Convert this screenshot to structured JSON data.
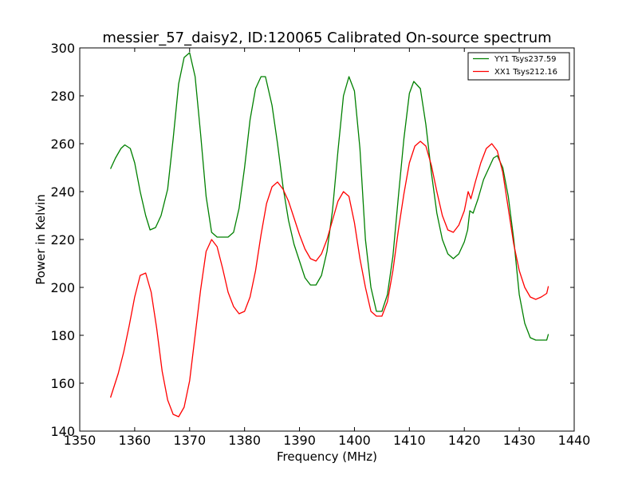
{
  "chart_data": {
    "type": "line",
    "title": "messier_57_daisy2, ID:120065 Calibrated On-source spectrum",
    "xlabel": "Frequency (MHz)",
    "ylabel": "Power in Kelvin",
    "xlim": [
      1350,
      1440
    ],
    "ylim": [
      140,
      300
    ],
    "xticks": [
      1350,
      1360,
      1370,
      1380,
      1390,
      1400,
      1410,
      1420,
      1430,
      1440
    ],
    "yticks": [
      140,
      160,
      180,
      200,
      220,
      240,
      260,
      280,
      300
    ],
    "grid": false,
    "legend_position": "top-right",
    "series": [
      {
        "name": "YY1 Tsys237.59",
        "color": "#008000",
        "x": [
          1355.6,
          1356.5,
          1357.5,
          1358.2,
          1359.2,
          1360.0,
          1361.0,
          1362.0,
          1362.8,
          1363.8,
          1364.8,
          1366.0,
          1367.0,
          1368.0,
          1369.0,
          1370.0,
          1371.0,
          1372.0,
          1373.0,
          1374.0,
          1375.0,
          1376.0,
          1377.0,
          1378.0,
          1379.0,
          1380.0,
          1381.0,
          1382.0,
          1383.0,
          1383.8,
          1385.0,
          1386.0,
          1387.0,
          1388.0,
          1389.0,
          1390.0,
          1391.0,
          1392.0,
          1393.0,
          1394.0,
          1395.0,
          1396.0,
          1397.0,
          1398.0,
          1399.0,
          1400.0,
          1401.0,
          1402.0,
          1403.0,
          1404.0,
          1405.0,
          1406.0,
          1407.0,
          1408.0,
          1409.0,
          1410.0,
          1410.8,
          1412.0,
          1413.0,
          1414.0,
          1415.0,
          1416.0,
          1417.0,
          1418.0,
          1419.0,
          1420.0,
          1420.6,
          1421.0,
          1421.6,
          1422.5,
          1423.5,
          1424.5,
          1425.3,
          1426.0,
          1427.0,
          1428.0,
          1429.0,
          1430.0,
          1431.0,
          1432.0,
          1433.0,
          1434.0,
          1435.0,
          1435.3
        ],
        "values": [
          249.5,
          254,
          258,
          259.5,
          258,
          252,
          240,
          230,
          224,
          225,
          230,
          241,
          262,
          285,
          296,
          298,
          288,
          264,
          238,
          223,
          221,
          221,
          221,
          223,
          233,
          250,
          270,
          283,
          288,
          288,
          276,
          260,
          242,
          228,
          218,
          211,
          204,
          201,
          201,
          205,
          215,
          232,
          257,
          280,
          288,
          282,
          258,
          220,
          200,
          190,
          190,
          197,
          213,
          238,
          262,
          281,
          286,
          283,
          268,
          248,
          231,
          220,
          214,
          212,
          214,
          219,
          224,
          232,
          231,
          237,
          245,
          250,
          254,
          255,
          250,
          238,
          220,
          197,
          185,
          179,
          178,
          178,
          178,
          180.5
        ]
      },
      {
        "name": "XX1 Tsys212.16",
        "color": "#ff0000",
        "x": [
          1355.6,
          1357.0,
          1358.0,
          1359.0,
          1360.0,
          1361.0,
          1362.0,
          1363.0,
          1364.0,
          1365.0,
          1366.0,
          1367.0,
          1368.0,
          1369.0,
          1370.0,
          1371.0,
          1372.0,
          1373.0,
          1374.0,
          1375.0,
          1376.0,
          1377.0,
          1378.0,
          1379.0,
          1380.0,
          1381.0,
          1382.0,
          1383.0,
          1384.0,
          1385.0,
          1386.0,
          1387.0,
          1388.0,
          1389.0,
          1390.0,
          1391.0,
          1392.0,
          1393.0,
          1394.0,
          1395.0,
          1396.0,
          1397.0,
          1398.0,
          1399.0,
          1400.0,
          1401.0,
          1402.0,
          1403.0,
          1404.0,
          1405.0,
          1406.0,
          1407.0,
          1408.0,
          1409.0,
          1410.0,
          1411.0,
          1412.0,
          1413.0,
          1414.0,
          1415.0,
          1416.0,
          1417.0,
          1418.0,
          1419.0,
          1420.0,
          1420.7,
          1421.2,
          1422.0,
          1423.0,
          1424.0,
          1425.0,
          1426.0,
          1427.0,
          1428.0,
          1429.0,
          1430.0,
          1431.0,
          1432.0,
          1433.0,
          1434.0,
          1435.0,
          1435.3
        ],
        "values": [
          154,
          164,
          173,
          184,
          196,
          205,
          206,
          198,
          183,
          165,
          153,
          147,
          146,
          150,
          161,
          180,
          199,
          215,
          220,
          217,
          208,
          198,
          192,
          189,
          190,
          196,
          207,
          222,
          235,
          242,
          244,
          241,
          236,
          229,
          222,
          216,
          212,
          211,
          214,
          220,
          228,
          236,
          240,
          238,
          227,
          212,
          200,
          190,
          188,
          188,
          194,
          207,
          224,
          239,
          252,
          259,
          261,
          259,
          251,
          240,
          230,
          224,
          223,
          226,
          232,
          240,
          237,
          244,
          252,
          258,
          260,
          257,
          248,
          233,
          218,
          207,
          200,
          196,
          195,
          196,
          197.5,
          200.5
        ]
      }
    ]
  }
}
